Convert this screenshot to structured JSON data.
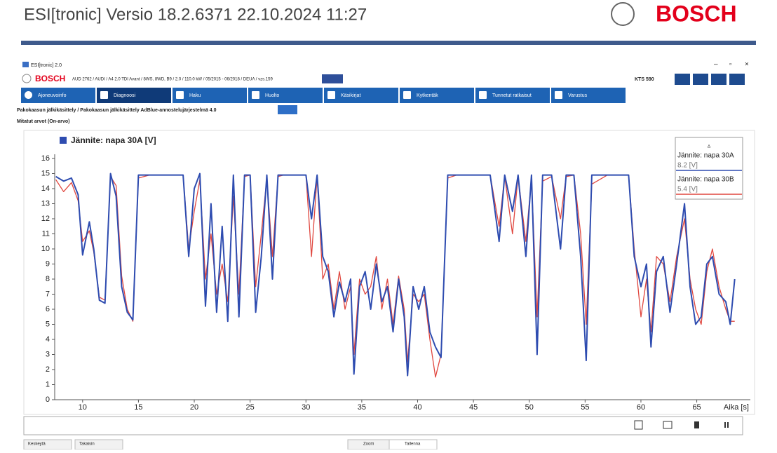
{
  "header": {
    "title": "ESI[tronic]  Versio 18.2.6371  22.10.2024  11:27",
    "brand": "BOSCH"
  },
  "window": {
    "title": "ESI[tronic] 2.0",
    "brand": "BOSCH",
    "vehicle": "AUD 2762 / AUDI / A4 2.0 TDI Avant / 8WS, 8WD, B9 / 2.0 / 110.0 kW / 05/2015 - 06/2018 / DEUA / vzs.159",
    "device": "KTS 590"
  },
  "tabs": [
    "Ajoneuvoinfo",
    "Diagnoosi",
    "Haku",
    "Huolto",
    "Käsikirjat",
    "Kytkentäk",
    "Tunnetut ratkaisut",
    "Varustus"
  ],
  "breadcrumb": "Pakokaasun jälkikäsittely / Pakokaasun jälkikäsittely AdBlue-annostelujärjestelmä 4.0",
  "section": "Mitatut arvot (On-arvo)",
  "buttons": [
    "Keskeytä",
    "Takaisin",
    "Zoom",
    "Tallenna"
  ],
  "chart_data": {
    "type": "line",
    "legend_title": "Jännite: napa 30A [V]",
    "xlabel": "Aika [s]",
    "xlim": [
      7.5,
      69.8
    ],
    "xticks": [
      10,
      15,
      20,
      25,
      30,
      35,
      40,
      45,
      50,
      55,
      60,
      65
    ],
    "ylim": [
      0,
      16
    ],
    "yticks": [
      0,
      1,
      2,
      3,
      4,
      5,
      6,
      7,
      8,
      9,
      10,
      11,
      12,
      13,
      14,
      15,
      16
    ],
    "grid": false,
    "cursor_labels": [
      "8.2 [V]",
      "5.4 [V]"
    ],
    "x": [
      7.6,
      8.3,
      9.0,
      9.6,
      10.0,
      10.6,
      11.0,
      11.5,
      12.0,
      12.5,
      13.0,
      13.5,
      14.0,
      14.5,
      15.0,
      16.0,
      17.0,
      18.0,
      19.0,
      19.5,
      20.0,
      20.5,
      21.0,
      21.5,
      22.0,
      22.5,
      23.0,
      23.5,
      24.0,
      24.5,
      25.0,
      25.5,
      26.0,
      26.5,
      27.0,
      27.5,
      28.0,
      29.0,
      30.0,
      30.5,
      31.0,
      31.5,
      32.0,
      32.5,
      33.0,
      33.5,
      34.0,
      34.3,
      34.8,
      35.3,
      35.8,
      36.3,
      36.8,
      37.3,
      37.8,
      38.3,
      38.8,
      39.1,
      39.6,
      40.1,
      40.6,
      41.1,
      41.6,
      42.1,
      42.7,
      43.5,
      45.0,
      46.5,
      47.3,
      47.8,
      48.5,
      49.0,
      49.7,
      50.2,
      50.7,
      51.2,
      52.0,
      52.8,
      53.3,
      54.0,
      54.6,
      55.1,
      55.6,
      57.0,
      58.9,
      59.4,
      60.0,
      60.5,
      60.9,
      61.4,
      62.0,
      62.6,
      63.2,
      63.9,
      64.4,
      64.9,
      65.4,
      65.9,
      66.4,
      67.0,
      67.6,
      68.0,
      68.4
    ],
    "series": [
      {
        "name": "Jännite: napa 30A",
        "color": "#2e4cb0",
        "values": [
          14.8,
          14.5,
          14.7,
          13.6,
          9.6,
          11.8,
          10.0,
          6.6,
          6.4,
          15.0,
          13.5,
          7.5,
          5.8,
          5.3,
          14.9,
          14.9,
          14.9,
          14.9,
          14.9,
          9.5,
          14.0,
          15.0,
          6.2,
          13.0,
          5.8,
          11.5,
          5.2,
          14.9,
          5.5,
          14.9,
          14.9,
          5.8,
          9.5,
          14.9,
          8.0,
          14.9,
          14.9,
          14.9,
          14.9,
          12.0,
          14.9,
          9.5,
          8.5,
          5.5,
          7.8,
          6.5,
          8.0,
          1.7,
          7.5,
          8.5,
          6.0,
          9.0,
          6.5,
          7.5,
          4.5,
          8.0,
          5.5,
          1.6,
          7.5,
          6.0,
          7.5,
          4.5,
          3.5,
          2.8,
          14.9,
          14.9,
          14.9,
          14.9,
          10.5,
          14.9,
          12.5,
          14.9,
          9.5,
          14.9,
          3.0,
          14.9,
          14.9,
          10.0,
          14.9,
          14.9,
          9.5,
          2.6,
          14.9,
          14.9,
          14.9,
          9.5,
          7.5,
          9.0,
          3.5,
          8.5,
          9.5,
          5.8,
          9.0,
          13.0,
          7.5,
          5.0,
          5.5,
          9.0,
          9.5,
          7.0,
          6.5,
          5.0,
          8.0
        ]
      },
      {
        "name": "Jännite: napa 30B",
        "color": "#e0473f",
        "values": [
          14.6,
          13.8,
          14.4,
          13.2,
          10.5,
          11.2,
          9.8,
          6.8,
          6.6,
          14.8,
          14.2,
          8.2,
          6.0,
          5.2,
          14.7,
          14.9,
          14.9,
          14.9,
          14.9,
          10.0,
          12.5,
          14.6,
          8.0,
          11.0,
          7.0,
          9.0,
          6.5,
          13.5,
          7.0,
          14.8,
          14.9,
          7.5,
          11.0,
          14.7,
          9.5,
          14.8,
          14.9,
          14.9,
          14.9,
          9.5,
          14.8,
          8.0,
          9.0,
          6.0,
          8.5,
          6.0,
          7.5,
          3.0,
          8.0,
          7.0,
          7.5,
          9.5,
          6.0,
          8.0,
          5.0,
          8.2,
          6.0,
          2.5,
          7.0,
          6.5,
          7.0,
          4.0,
          1.5,
          3.0,
          14.7,
          14.9,
          14.9,
          14.9,
          11.5,
          14.8,
          11.0,
          14.8,
          10.5,
          14.7,
          5.5,
          14.5,
          14.8,
          12.0,
          14.8,
          14.9,
          11.0,
          5.0,
          14.3,
          14.9,
          14.9,
          10.0,
          5.5,
          8.0,
          4.5,
          9.5,
          9.0,
          6.5,
          9.5,
          12.0,
          8.0,
          6.0,
          5.0,
          8.5,
          10.0,
          7.5,
          6.0,
          5.2,
          5.2
        ]
      }
    ]
  }
}
